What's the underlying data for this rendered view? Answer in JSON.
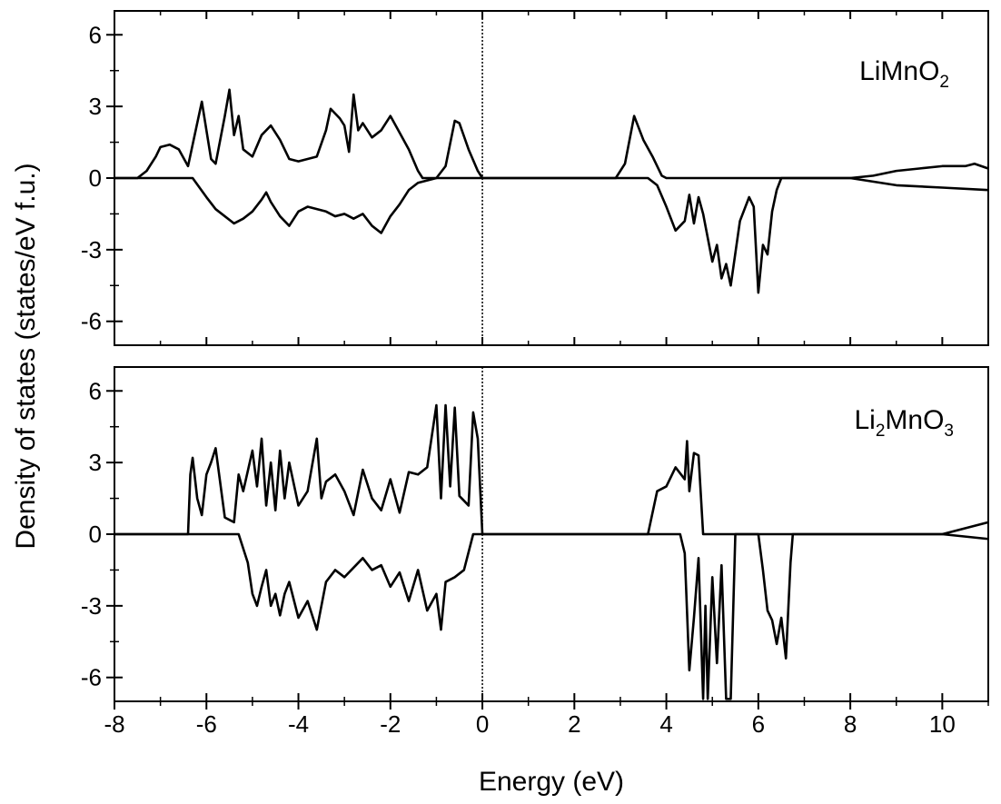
{
  "chart_data": {
    "type": "line",
    "xlabel": "Energy (eV)",
    "ylabel": "Density of states (states/eV f.u.)",
    "xlim": [
      -8,
      11
    ],
    "x_ticks": [
      "-8",
      "-6",
      "-4",
      "-2",
      "0",
      "2",
      "4",
      "6",
      "8",
      "10"
    ],
    "y_ticks": [
      "6",
      "3",
      "0",
      "-3",
      "-6"
    ],
    "fermi_level": 0,
    "line_color": "#000000",
    "panels": [
      {
        "label": {
          "main": "LiMnO",
          "sub": "2",
          "tail": ""
        },
        "ylim": [
          -7,
          7
        ],
        "series": [
          {
            "spin": "up",
            "x": [
              -8,
              -7.5,
              -7.3,
              -7.1,
              -7.0,
              -6.8,
              -6.6,
              -6.4,
              -6.2,
              -6.1,
              -6.0,
              -5.9,
              -5.8,
              -5.6,
              -5.5,
              -5.4,
              -5.3,
              -5.2,
              -5.0,
              -4.8,
              -4.6,
              -4.4,
              -4.2,
              -4.0,
              -3.8,
              -3.6,
              -3.4,
              -3.3,
              -3.1,
              -3.0,
              -2.9,
              -2.8,
              -2.7,
              -2.6,
              -2.4,
              -2.2,
              -2.0,
              -1.8,
              -1.6,
              -1.4,
              -1.3,
              -1.0,
              -0.8,
              -0.6,
              -0.5,
              -0.3,
              -0.1,
              0,
              2.9,
              3.1,
              3.3,
              3.5,
              3.7,
              3.9,
              4.0,
              8.0,
              8.5,
              9.0,
              9.5,
              10.0,
              10.5,
              10.7,
              11.0
            ],
            "y": [
              0,
              0,
              0.3,
              0.9,
              1.3,
              1.4,
              1.2,
              0.5,
              2.3,
              3.2,
              2.0,
              0.8,
              0.6,
              2.6,
              3.7,
              1.8,
              2.6,
              1.2,
              0.9,
              1.8,
              2.2,
              1.6,
              0.8,
              0.7,
              0.8,
              0.9,
              2.0,
              2.9,
              2.5,
              2.2,
              1.1,
              3.5,
              2.0,
              2.3,
              1.7,
              2.0,
              2.6,
              1.9,
              1.2,
              0.3,
              0,
              0,
              0.5,
              2.4,
              2.3,
              1.2,
              0.3,
              0,
              0,
              0.6,
              2.6,
              1.6,
              0.9,
              0.1,
              0,
              0,
              0.1,
              0.3,
              0.4,
              0.5,
              0.5,
              0.6,
              0.4
            ]
          },
          {
            "spin": "down",
            "x": [
              -8,
              -6.3,
              -6.0,
              -5.8,
              -5.6,
              -5.4,
              -5.2,
              -5.0,
              -4.8,
              -4.7,
              -4.6,
              -4.4,
              -4.2,
              -4.0,
              -3.8,
              -3.6,
              -3.4,
              -3.2,
              -3.0,
              -2.8,
              -2.6,
              -2.4,
              -2.2,
              -2.0,
              -1.8,
              -1.6,
              -1.4,
              -1.2,
              -1.0,
              0,
              3.6,
              3.8,
              4.0,
              4.2,
              4.4,
              4.5,
              4.6,
              4.7,
              4.8,
              5.0,
              5.1,
              5.2,
              5.3,
              5.4,
              5.6,
              5.8,
              5.9,
              6.0,
              6.1,
              6.2,
              6.3,
              6.4,
              6.5,
              8.0,
              9.0,
              10.0,
              11.0
            ],
            "y": [
              0,
              0,
              -0.8,
              -1.3,
              -1.6,
              -1.9,
              -1.7,
              -1.4,
              -0.9,
              -0.6,
              -1.0,
              -1.6,
              -2.0,
              -1.4,
              -1.2,
              -1.3,
              -1.4,
              -1.6,
              -1.5,
              -1.7,
              -1.5,
              -2.0,
              -2.3,
              -1.6,
              -1.1,
              -0.5,
              -0.2,
              -0.1,
              0,
              0,
              0,
              -0.3,
              -1.2,
              -2.2,
              -1.8,
              -0.7,
              -1.9,
              -0.8,
              -1.5,
              -3.5,
              -2.8,
              -4.2,
              -3.6,
              -4.5,
              -1.8,
              -0.8,
              -1.2,
              -4.8,
              -2.8,
              -3.2,
              -1.4,
              -0.5,
              0,
              0,
              -0.3,
              -0.4,
              -0.5
            ]
          }
        ]
      },
      {
        "label": {
          "main": "Li",
          "sub": "2",
          "tail": "MnO",
          "sub2": "3"
        },
        "ylim": [
          -7,
          7
        ],
        "series": [
          {
            "spin": "up",
            "x": [
              -8,
              -6.4,
              -6.35,
              -6.3,
              -6.2,
              -6.1,
              -6.0,
              -5.9,
              -5.8,
              -5.6,
              -5.4,
              -5.3,
              -5.2,
              -5.0,
              -4.9,
              -4.8,
              -4.7,
              -4.6,
              -4.5,
              -4.4,
              -4.3,
              -4.2,
              -4.0,
              -3.8,
              -3.6,
              -3.5,
              -3.4,
              -3.2,
              -3.0,
              -2.8,
              -2.6,
              -2.4,
              -2.2,
              -2.0,
              -1.8,
              -1.6,
              -1.4,
              -1.2,
              -1.0,
              -0.9,
              -0.8,
              -0.7,
              -0.6,
              -0.5,
              -0.3,
              -0.2,
              -0.1,
              0,
              3.6,
              3.8,
              4.0,
              4.2,
              4.4,
              4.45,
              4.5,
              4.6,
              4.7,
              4.8,
              10.0,
              11.0
            ],
            "y": [
              0,
              0,
              2.5,
              3.2,
              1.5,
              0.8,
              2.5,
              3.0,
              3.6,
              0.7,
              0.5,
              2.5,
              1.8,
              3.5,
              2.0,
              4.0,
              1.2,
              3.0,
              1.0,
              3.5,
              1.5,
              3.0,
              1.2,
              1.8,
              4.0,
              1.5,
              2.2,
              2.5,
              1.8,
              0.8,
              2.7,
              1.5,
              1.0,
              2.3,
              0.9,
              2.6,
              2.5,
              2.8,
              5.4,
              1.5,
              5.4,
              2.0,
              5.3,
              1.6,
              1.2,
              5.1,
              4.0,
              0,
              0,
              1.8,
              2.0,
              2.8,
              2.3,
              3.9,
              1.8,
              3.4,
              3.3,
              0,
              0,
              0.5
            ]
          },
          {
            "spin": "down",
            "x": [
              -8,
              -5.3,
              -5.1,
              -5.0,
              -4.9,
              -4.8,
              -4.7,
              -4.6,
              -4.5,
              -4.4,
              -4.3,
              -4.2,
              -4.0,
              -3.8,
              -3.6,
              -3.4,
              -3.2,
              -3.0,
              -2.8,
              -2.6,
              -2.4,
              -2.2,
              -2.0,
              -1.8,
              -1.6,
              -1.4,
              -1.2,
              -1.0,
              -0.9,
              -0.8,
              -0.6,
              -0.4,
              -0.2,
              0,
              4.3,
              4.4,
              4.5,
              4.6,
              4.7,
              4.8,
              4.85,
              4.9,
              5.0,
              5.1,
              5.2,
              5.3,
              5.35,
              5.4,
              5.5,
              6.0,
              6.1,
              6.2,
              6.3,
              6.4,
              6.5,
              6.6,
              6.7,
              6.75,
              10.0,
              11.0
            ],
            "y": [
              0,
              0,
              -1.2,
              -2.5,
              -3.0,
              -2.2,
              -1.5,
              -3.0,
              -2.5,
              -3.4,
              -2.5,
              -2.0,
              -3.5,
              -2.8,
              -4.0,
              -2.0,
              -1.5,
              -1.8,
              -1.4,
              -1.0,
              -1.5,
              -1.3,
              -2.2,
              -1.6,
              -2.8,
              -1.5,
              -3.2,
              -2.5,
              -4.0,
              -2.0,
              -1.8,
              -1.5,
              0,
              0,
              0,
              -0.8,
              -5.7,
              -3.5,
              -1.0,
              -6.9,
              -3.0,
              -6.9,
              -1.8,
              -5.4,
              -1.3,
              -6.9,
              -6.9,
              -6.9,
              0,
              0,
              -1.5,
              -3.2,
              -3.6,
              -4.6,
              -3.5,
              -5.2,
              -1.2,
              0,
              0,
              -0.2
            ]
          }
        ]
      }
    ]
  }
}
